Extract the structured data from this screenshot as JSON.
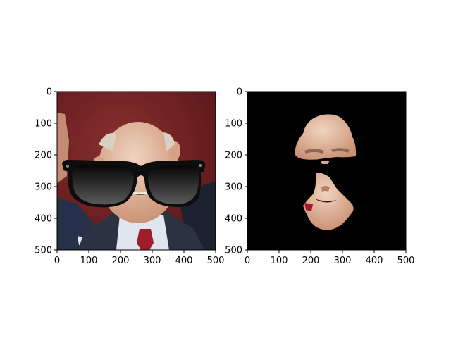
{
  "chart_data": [
    {
      "type": "image",
      "panel": "left",
      "content": "photo of a bald man in a dark suit with white shirt and red tie, cartoon black sunglasses overlaid on his eyes, dark red background",
      "xlim": [
        0,
        500
      ],
      "ylim": [
        500,
        0
      ],
      "xticks": [
        0,
        100,
        200,
        300,
        400,
        500
      ],
      "yticks": [
        0,
        100,
        200,
        300,
        400,
        500
      ],
      "xtick_labels": [
        "0",
        "100",
        "200",
        "300",
        "400",
        "500"
      ],
      "ytick_labels": [
        "0",
        "100",
        "200",
        "300",
        "400",
        "500"
      ],
      "title": "",
      "xlabel": "",
      "ylabel": "",
      "grid": false
    },
    {
      "type": "image",
      "panel": "right",
      "content": "segmentation mask result: only the face skin region visible (forehead and lower face), black background, sunglasses region blacked out",
      "xlim": [
        0,
        500
      ],
      "ylim": [
        500,
        0
      ],
      "xticks": [
        0,
        100,
        200,
        300,
        400,
        500
      ],
      "yticks": [
        0,
        100,
        200,
        300,
        400,
        500
      ],
      "xtick_labels": [
        "0",
        "100",
        "200",
        "300",
        "400",
        "500"
      ],
      "ytick_labels": [
        "0",
        "100",
        "200",
        "300",
        "400",
        "500"
      ],
      "title": "",
      "xlabel": "",
      "ylabel": "",
      "grid": false
    }
  ],
  "colors": {
    "background_left": "#6e1f22",
    "skin": "#d9a88c",
    "suit": "#2b3342",
    "shirt": "#dfe6f0",
    "tie": "#a01c2a",
    "glasses": "#0d0d0d",
    "mask_background": "#000000"
  }
}
